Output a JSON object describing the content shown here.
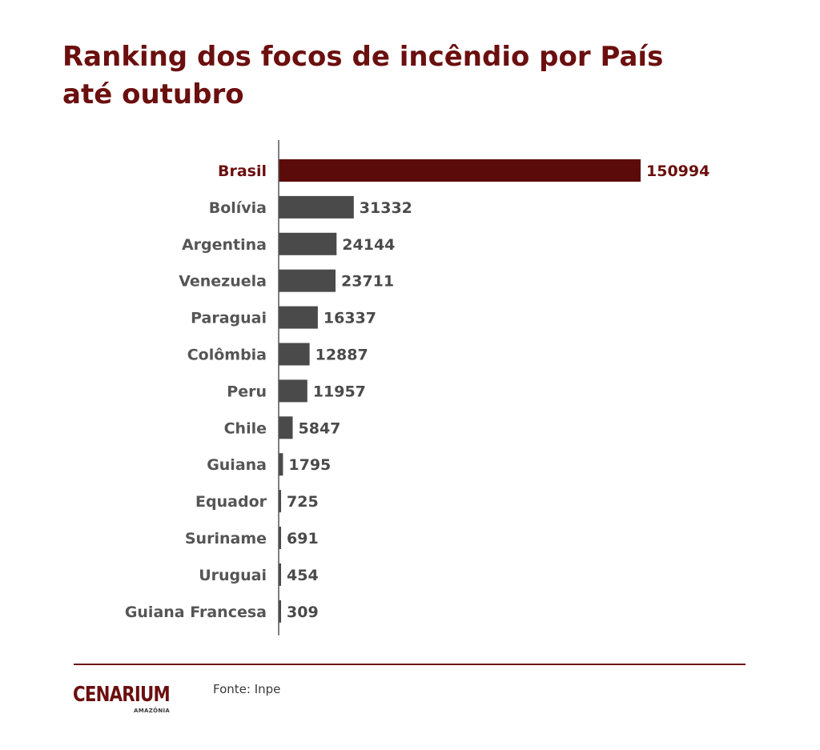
{
  "title_line1": "Ranking dos focos de incêndio por País",
  "title_line2": "até outubro",
  "footer": {
    "logo_text": "CENARIUM",
    "logo_subtext": "AMAZÔNIA",
    "source": "Fonte: Inpe"
  },
  "colors": {
    "title": "#6b0f0f",
    "highlight_bar": "#5c0b0b",
    "highlight_label": "#6b0f0f",
    "bar": "#4a4a4a",
    "label": "#555555",
    "value": "#4a4a4a",
    "axis": "#555555",
    "divider": "#6e1616"
  },
  "chart_data": {
    "type": "bar",
    "orientation": "horizontal",
    "title": "Ranking dos focos de incêndio por País até outubro",
    "categories": [
      "Brasil",
      "Bolívia",
      "Argentina",
      "Venezuela",
      "Paraguai",
      "Colômbia",
      "Peru",
      "Chile",
      "Guiana",
      "Equador",
      "Suriname",
      "Uruguai",
      "Guiana Francesa"
    ],
    "values": [
      150994,
      31332,
      24144,
      23711,
      16337,
      12887,
      11957,
      5847,
      1795,
      725,
      691,
      454,
      309
    ],
    "highlight": "Brasil",
    "data_labels": true,
    "grid": false,
    "legend": "none",
    "xlim": [
      0,
      150994
    ]
  }
}
